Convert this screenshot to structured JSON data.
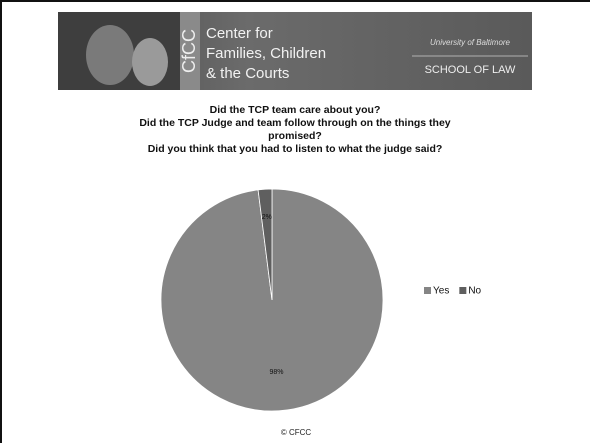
{
  "header": {
    "center_lines": [
      "Center for",
      "Families, Children",
      "& the Courts"
    ],
    "logo": "CfCC",
    "university": "University of Baltimore",
    "school": "SCHOOL OF LAW"
  },
  "chart_data": {
    "type": "pie",
    "title": [
      "Did the TCP team care about you?",
      "Did the TCP Judge and team follow through on the things they promised?",
      "Did you think that you had to listen to what the judge said?"
    ],
    "categories": [
      "Yes",
      "No"
    ],
    "values": [
      98,
      2
    ],
    "value_labels": [
      "98%",
      "2%"
    ],
    "colors": [
      "#858585",
      "#5f5f5f"
    ],
    "legend": "right"
  },
  "footer": "© CFCC"
}
